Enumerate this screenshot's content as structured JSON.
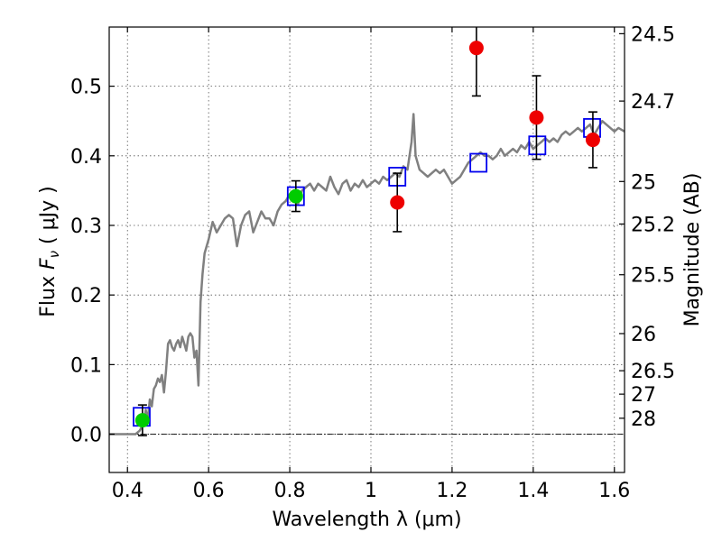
{
  "chart_data": {
    "type": "scatter",
    "xlabel": "Wavelength  λ (μm)",
    "ylabel": "Flux  F_ν  ( μJy )",
    "ylabel_parts": {
      "prefix": "Flux  ",
      "symbol": "F",
      "subscript": "ν",
      "suffix": "  ( μJy )"
    },
    "right_ylabel": "Magnitude (AB)",
    "xlim": [
      0.355,
      1.625
    ],
    "ylim": [
      -0.055,
      0.585
    ],
    "grid": true,
    "x_ticks": [
      {
        "value": 0.4,
        "label": "0.4"
      },
      {
        "value": 0.6,
        "label": "0.6"
      },
      {
        "value": 0.8,
        "label": "0.8"
      },
      {
        "value": 1.0,
        "label": "1"
      },
      {
        "value": 1.2,
        "label": "1.2"
      },
      {
        "value": 1.4,
        "label": "1.4"
      },
      {
        "value": 1.6,
        "label": "1.6"
      }
    ],
    "y_ticks": [
      {
        "value": 0.0,
        "label": "0.0"
      },
      {
        "value": 0.1,
        "label": "0.1"
      },
      {
        "value": 0.2,
        "label": "0.2"
      },
      {
        "value": 0.3,
        "label": "0.3"
      },
      {
        "value": 0.4,
        "label": "0.4"
      },
      {
        "value": 0.5,
        "label": "0.5"
      }
    ],
    "magnitude_ticks": [
      {
        "mag": 24.5,
        "label": "24.5"
      },
      {
        "mag": 24.7,
        "label": "24.7"
      },
      {
        "mag": 25.0,
        "label": "25"
      },
      {
        "mag": 25.2,
        "label": "25.2"
      },
      {
        "mag": 25.5,
        "label": "25.5"
      },
      {
        "mag": 26.0,
        "label": "26"
      },
      {
        "mag": 26.5,
        "label": "26.5"
      },
      {
        "mag": 27.0,
        "label": "27"
      },
      {
        "mag": 28.0,
        "label": "28"
      }
    ],
    "zero_line": 0.0,
    "series": [
      {
        "kind": "spectrum",
        "color": "#808080",
        "x": [
          0.355,
          0.42,
          0.43,
          0.44,
          0.445,
          0.45,
          0.455,
          0.46,
          0.465,
          0.47,
          0.475,
          0.48,
          0.485,
          0.49,
          0.495,
          0.5,
          0.505,
          0.51,
          0.515,
          0.52,
          0.525,
          0.53,
          0.535,
          0.54,
          0.545,
          0.55,
          0.555,
          0.56,
          0.565,
          0.57,
          0.575,
          0.58,
          0.585,
          0.59,
          0.6,
          0.61,
          0.62,
          0.63,
          0.64,
          0.65,
          0.66,
          0.67,
          0.68,
          0.69,
          0.7,
          0.71,
          0.72,
          0.73,
          0.74,
          0.75,
          0.76,
          0.77,
          0.78,
          0.79,
          0.8,
          0.81,
          0.82,
          0.83,
          0.84,
          0.85,
          0.86,
          0.87,
          0.88,
          0.89,
          0.9,
          0.91,
          0.92,
          0.93,
          0.94,
          0.95,
          0.96,
          0.97,
          0.98,
          0.99,
          1.0,
          1.01,
          1.02,
          1.03,
          1.04,
          1.05,
          1.06,
          1.07,
          1.08,
          1.09,
          1.1,
          1.105,
          1.11,
          1.12,
          1.13,
          1.14,
          1.15,
          1.16,
          1.17,
          1.18,
          1.19,
          1.2,
          1.21,
          1.22,
          1.23,
          1.24,
          1.25,
          1.26,
          1.27,
          1.28,
          1.29,
          1.3,
          1.31,
          1.32,
          1.33,
          1.34,
          1.35,
          1.36,
          1.37,
          1.38,
          1.39,
          1.4,
          1.41,
          1.42,
          1.43,
          1.44,
          1.45,
          1.46,
          1.47,
          1.48,
          1.49,
          1.5,
          1.51,
          1.52,
          1.53,
          1.54,
          1.55,
          1.56,
          1.57,
          1.58,
          1.59,
          1.6,
          1.61,
          1.625
        ],
        "y": [
          0.0,
          0.0,
          0.005,
          0.015,
          0.035,
          0.02,
          0.05,
          0.04,
          0.065,
          0.07,
          0.08,
          0.075,
          0.085,
          0.06,
          0.09,
          0.13,
          0.135,
          0.125,
          0.12,
          0.13,
          0.135,
          0.125,
          0.14,
          0.13,
          0.12,
          0.14,
          0.145,
          0.14,
          0.11,
          0.12,
          0.07,
          0.19,
          0.23,
          0.26,
          0.28,
          0.305,
          0.29,
          0.3,
          0.31,
          0.315,
          0.31,
          0.27,
          0.3,
          0.315,
          0.32,
          0.29,
          0.305,
          0.32,
          0.31,
          0.31,
          0.3,
          0.32,
          0.33,
          0.335,
          0.345,
          0.345,
          0.33,
          0.35,
          0.355,
          0.36,
          0.35,
          0.36,
          0.355,
          0.35,
          0.37,
          0.355,
          0.345,
          0.36,
          0.365,
          0.35,
          0.36,
          0.355,
          0.365,
          0.355,
          0.36,
          0.365,
          0.36,
          0.37,
          0.365,
          0.37,
          0.375,
          0.37,
          0.385,
          0.38,
          0.42,
          0.46,
          0.4,
          0.38,
          0.375,
          0.37,
          0.375,
          0.38,
          0.375,
          0.38,
          0.37,
          0.36,
          0.365,
          0.37,
          0.38,
          0.39,
          0.395,
          0.4,
          0.405,
          0.4,
          0.4,
          0.395,
          0.4,
          0.41,
          0.4,
          0.405,
          0.41,
          0.405,
          0.415,
          0.41,
          0.42,
          0.41,
          0.415,
          0.42,
          0.425,
          0.42,
          0.425,
          0.42,
          0.43,
          0.435,
          0.43,
          0.435,
          0.44,
          0.435,
          0.44,
          0.445,
          0.43,
          0.44,
          0.45,
          0.445,
          0.44,
          0.435,
          0.44,
          0.435
        ]
      },
      {
        "kind": "model",
        "marker": "open-square",
        "color": "#0000ee",
        "x": [
          0.435,
          0.815,
          1.065,
          1.265,
          1.41,
          1.545
        ],
        "y": [
          0.025,
          0.342,
          0.37,
          0.39,
          0.415,
          0.44
        ]
      },
      {
        "kind": "observed",
        "marker": "circle",
        "color": "#00cc00",
        "x": [
          0.437,
          0.815
        ],
        "y": [
          0.02,
          0.342
        ],
        "yerr": [
          0.022,
          0.022
        ]
      },
      {
        "kind": "observed",
        "marker": "circle",
        "color": "#ee0000",
        "x": [
          1.065,
          1.26,
          1.408,
          1.547
        ],
        "y": [
          0.333,
          0.555,
          0.455,
          0.423
        ],
        "yerr": [
          0.042,
          0.069,
          0.06,
          0.04
        ]
      }
    ]
  }
}
